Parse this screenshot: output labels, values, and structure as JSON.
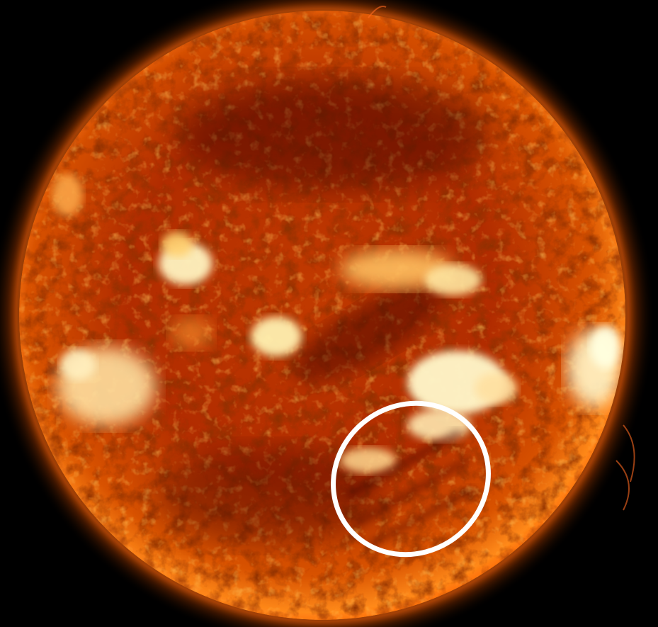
{
  "image": {
    "kind": "photograph",
    "subject": "sun",
    "colors": {
      "background": "#000000",
      "limb_glow": "#ff5a00",
      "disk_base": "#b82b00",
      "disk_dark": "#4a0600",
      "active_region": "#fff0b0",
      "annotation": "#ffffff"
    },
    "annotation": {
      "shape": "ellipse",
      "stroke_color": "#ffffff"
    }
  }
}
